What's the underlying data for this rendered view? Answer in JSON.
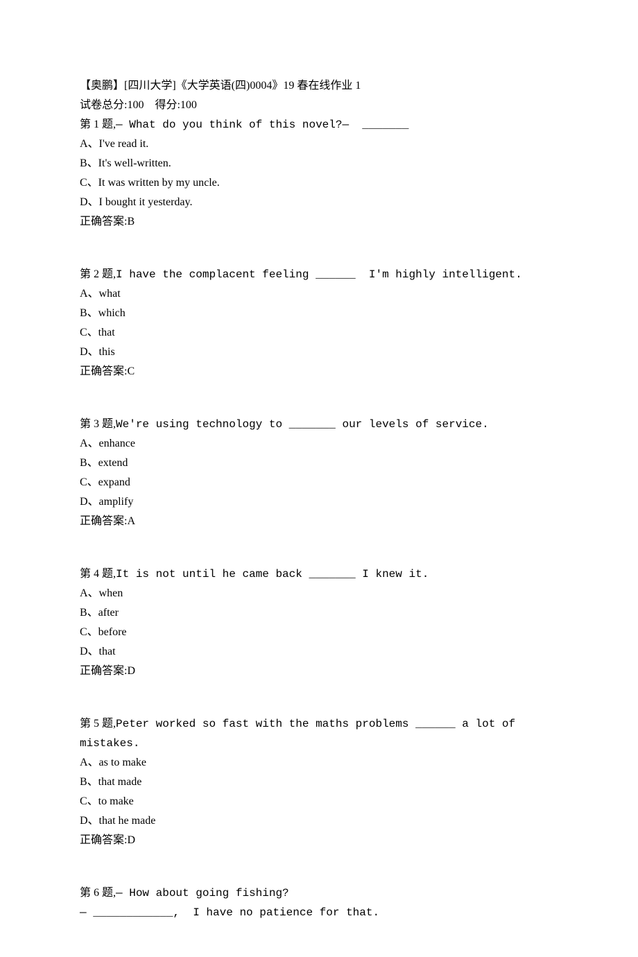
{
  "header": {
    "title": "【奥鹏】[四川大学]《大学英语(四)0004》19 春在线作业 1",
    "score_label_prefix": "试卷总分:",
    "total_score": "100",
    "score_sep": "    ",
    "obtained_label_prefix": "得分:",
    "obtained_score": "100"
  },
  "questions": [
    {
      "num": "第 1 题,",
      "stem": "— What do you think of this novel?—  _______",
      "options": [
        "A、I've read it.",
        "B、It's well-written.",
        "C、It was written by my uncle.",
        "D、I bought it yesterday."
      ],
      "answer_label": "正确答案:",
      "answer": "B"
    },
    {
      "num": "第 2 题,",
      "stem": "I have the complacent feeling ______  I'm highly intelligent.",
      "options": [
        "A、what",
        "B、which",
        "C、that",
        "D、this"
      ],
      "answer_label": "正确答案:",
      "answer": "C"
    },
    {
      "num": "第 3 题,",
      "stem": "We're using technology to _______ our levels of service.",
      "options": [
        "A、enhance",
        "B、extend",
        "C、expand",
        "D、amplify"
      ],
      "answer_label": "正确答案:",
      "answer": "A"
    },
    {
      "num": "第 4 题,",
      "stem": "It is not until he came back _______ I knew it.",
      "options": [
        "A、when",
        "B、after",
        "C、before",
        "D、that"
      ],
      "answer_label": "正确答案:",
      "answer": "D"
    },
    {
      "num": "第 5 题,",
      "stem": "Peter worked so fast with the maths problems ______ a lot of mistakes.",
      "options": [
        "A、as to make",
        "B、that made",
        "C、to make",
        "D、that he made"
      ],
      "answer_label": "正确答案:",
      "answer": "D"
    },
    {
      "num": "第 6 题,",
      "stem": "— How about going fishing?",
      "line2": "— ____________,  I have no patience for that.",
      "options": [],
      "answer_label": "",
      "answer": ""
    }
  ]
}
